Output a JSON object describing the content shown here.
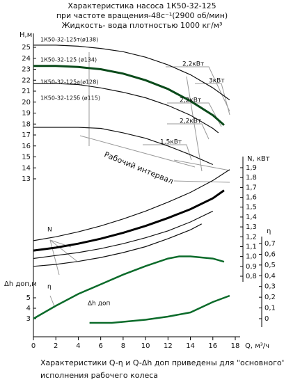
{
  "chart_data": {
    "type": "line",
    "title": [
      "Характеристика насоса 1К50-32-125",
      "при частоте вращения-48с⁻¹(2900 об/мин)",
      "Жидкость- вода плотностью 1000 кг/м³"
    ],
    "footer": [
      "Характеристики Q-η и Q-Δh доп приведены для \"основного\"",
      "исполнения рабочего колеса"
    ],
    "x_label": "Q, м³/ч",
    "h_label": "Н,м",
    "n_label": "N, кВт",
    "eta_label": "η",
    "dh_label": "Δh доп,м",
    "annotations": [
      "2,2кВт",
      "3кВт",
      "2,2кВт",
      "2,2кВт",
      "1,5кВт",
      "Рабочий интервал",
      "N",
      "η",
      "Δh доп"
    ],
    "xlim": [
      0,
      18
    ],
    "xticks": [
      0,
      2,
      4,
      6,
      8,
      10,
      12,
      14,
      16,
      18
    ],
    "hlim": [
      13,
      25
    ],
    "hticks": [
      13,
      14,
      15,
      16,
      17,
      18,
      19,
      20,
      21,
      22,
      23,
      24,
      25
    ],
    "nlim": [
      0.8,
      1.9
    ],
    "nticks": [
      {
        "value": 0.8,
        "label": "0,8"
      },
      {
        "value": 0.9,
        "label": "0,9"
      },
      {
        "value": 1.0,
        "label": "1,0"
      },
      {
        "value": 1.1,
        "label": "1,1"
      },
      {
        "value": 1.2,
        "label": "1,2"
      },
      {
        "value": 1.3,
        "label": "1,3"
      },
      {
        "value": 1.4,
        "label": "1,4"
      },
      {
        "value": 1.5,
        "label": "1,5"
      },
      {
        "value": 1.6,
        "label": "1,6"
      },
      {
        "value": 1.7,
        "label": "1,7"
      },
      {
        "value": 1.8,
        "label": "1,8"
      },
      {
        "value": 1.9,
        "label": "1,9"
      }
    ],
    "etalim": [
      0,
      0.7
    ],
    "etaticks": [
      0,
      {
        "value": 0.1,
        "label": "0,1"
      },
      {
        "value": 0.2,
        "label": "0,2"
      },
      {
        "value": 0.3,
        "label": "0,3"
      },
      {
        "value": 0.4,
        "label": "0,4"
      },
      {
        "value": 0.5,
        "label": "0,5"
      },
      {
        "value": 0.6,
        "label": "0,6"
      },
      {
        "value": 0.7,
        "label": "0,7"
      }
    ],
    "dhlim": [
      2,
      6
    ],
    "dhticks": [
      3,
      4,
      5
    ],
    "series": [
      {
        "name": "1К50-32-125т(ø138)",
        "axis": "h",
        "color": "#111111",
        "x": [
          0,
          2,
          4,
          6,
          8,
          10,
          12,
          14,
          16,
          17.5
        ],
        "values": [
          25.2,
          25.2,
          25.1,
          24.9,
          24.6,
          24.1,
          23.4,
          22.5,
          21.3,
          20.2
        ]
      },
      {
        "name": "1К50-32-125 (ø134)",
        "axis": "h",
        "color": "#0a4a1a",
        "x": [
          0,
          2,
          4,
          6,
          8,
          10,
          12,
          14,
          16,
          17
        ],
        "values": [
          23.3,
          23.3,
          23.2,
          23.0,
          22.6,
          22.0,
          21.2,
          20.1,
          18.8,
          17.9
        ]
      },
      {
        "name": "1К50-32-125а(ø128)",
        "axis": "h",
        "color": "#111111",
        "x": [
          0,
          2,
          4,
          6,
          8,
          10,
          12,
          14,
          16,
          16.5
        ],
        "values": [
          21.7,
          21.7,
          21.6,
          21.3,
          20.9,
          20.4,
          19.7,
          18.8,
          17.6,
          17.2
        ]
      },
      {
        "name": "1К50-32-125б (ø115)",
        "axis": "h",
        "color": "#111111",
        "x": [
          0,
          2,
          4,
          6,
          8,
          10,
          12,
          14,
          16
        ],
        "values": [
          17.7,
          17.7,
          17.7,
          17.6,
          17.2,
          16.7,
          16.0,
          15.2,
          14.3
        ]
      },
      {
        "axis": "n",
        "color": "#111111",
        "x": [
          0,
          2,
          4,
          6,
          8,
          10,
          12,
          14,
          16,
          17.5
        ],
        "values": [
          1.16,
          1.2,
          1.25,
          1.31,
          1.38,
          1.46,
          1.55,
          1.65,
          1.77,
          1.88
        ]
      },
      {
        "axis": "n",
        "color": "#000000",
        "x": [
          0,
          2,
          4,
          6,
          8,
          10,
          12,
          14,
          16,
          17
        ],
        "values": [
          1.06,
          1.09,
          1.13,
          1.18,
          1.24,
          1.31,
          1.39,
          1.48,
          1.59,
          1.67
        ]
      },
      {
        "axis": "n",
        "color": "#111111",
        "x": [
          0,
          2,
          4,
          6,
          8,
          10,
          12,
          14,
          16
        ],
        "values": [
          0.98,
          1.01,
          1.04,
          1.08,
          1.13,
          1.19,
          1.26,
          1.35,
          1.46
        ]
      },
      {
        "axis": "n",
        "color": "#111111",
        "x": [
          0,
          2,
          4,
          6,
          8,
          10,
          12,
          14,
          15
        ],
        "values": [
          0.9,
          0.92,
          0.95,
          0.99,
          1.04,
          1.1,
          1.18,
          1.27,
          1.33
        ]
      },
      {
        "axis": "eta",
        "color": "#0b6b2a",
        "x": [
          0,
          2,
          4,
          6,
          8,
          10,
          12,
          13,
          14,
          16,
          17
        ],
        "values": [
          0,
          0.12,
          0.23,
          0.32,
          0.41,
          0.49,
          0.56,
          0.58,
          0.58,
          0.56,
          0.53
        ]
      },
      {
        "axis": "dh",
        "color": "#0b6b2a",
        "x": [
          5,
          6,
          7,
          8,
          10,
          12,
          14,
          16,
          17.5
        ],
        "values": [
          2.6,
          2.6,
          2.6,
          2.7,
          2.9,
          3.2,
          3.6,
          4.6,
          5.2
        ]
      }
    ]
  }
}
